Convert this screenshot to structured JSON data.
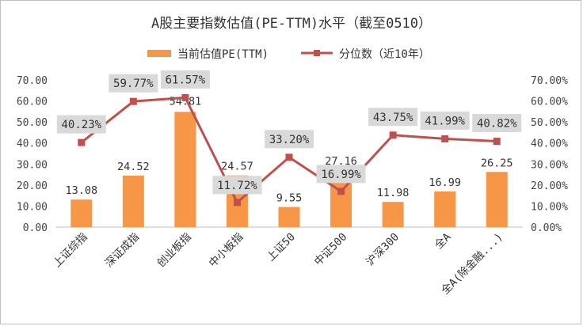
{
  "chart_data": {
    "type": "bar",
    "title": "A股主要指数估值(PE-TTM)水平（截至0510）",
    "categories": [
      "上证综指",
      "深证成指",
      "创业板指",
      "中小板指",
      "上证50",
      "中证500",
      "沪深300",
      "全A",
      "全A(除金融...)"
    ],
    "series": [
      {
        "name": "当前估值PE(TTM)",
        "type": "bar",
        "axis": "left",
        "color": "#f79646",
        "values": [
          13.08,
          24.52,
          54.81,
          24.57,
          9.55,
          27.16,
          11.98,
          16.99,
          26.25
        ],
        "labels": [
          "13.08",
          "24.52",
          "54.81",
          "24.57",
          "9.55",
          "27.16",
          "11.98",
          "16.99",
          "26.25"
        ]
      },
      {
        "name": "分位数（近10年）",
        "type": "line",
        "axis": "right",
        "color": "#c0504d",
        "values": [
          40.23,
          59.77,
          61.57,
          11.72,
          33.2,
          16.99,
          43.75,
          41.99,
          40.82
        ],
        "labels": [
          "40.23%",
          "59.77%",
          "61.57%",
          "11.72%",
          "33.20%",
          "16.99%",
          "43.75%",
          "41.99%",
          "40.82%"
        ]
      }
    ],
    "y_left": {
      "min": 0,
      "max": 70,
      "step": 10,
      "ticks": [
        "0.00",
        "10.00",
        "20.00",
        "30.00",
        "40.00",
        "50.00",
        "60.00",
        "70.00"
      ]
    },
    "y_right": {
      "min": 0,
      "max": 70,
      "step": 10,
      "ticks": [
        "0.00%",
        "10.00%",
        "20.00%",
        "30.00%",
        "40.00%",
        "50.00%",
        "60.00%",
        "70.00%"
      ]
    },
    "grid": false,
    "legend": "top",
    "label_box_color": "#d9d9d9"
  }
}
